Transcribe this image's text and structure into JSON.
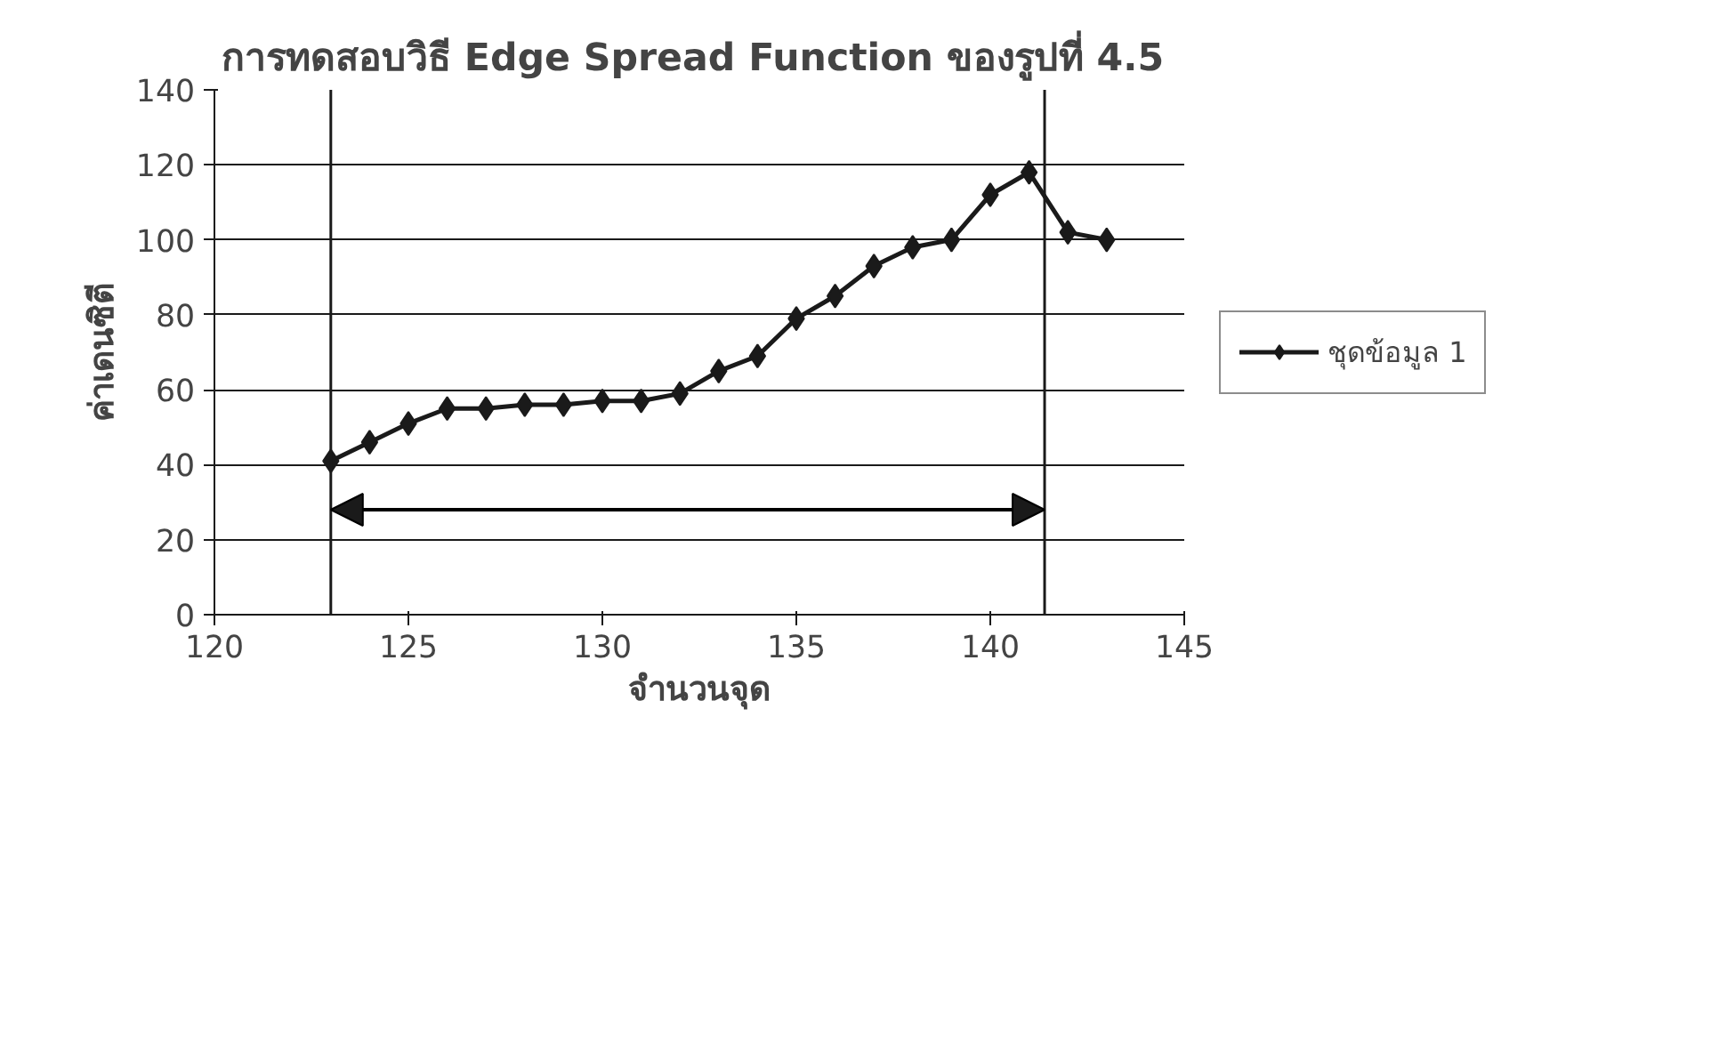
{
  "chart_data": {
    "type": "line",
    "title": "การทดสอบวิธี  Edge Spread Function ของรูปที่ 4.5",
    "xlabel": "จำนวนจุด",
    "ylabel": "ค่าเดนซิตี",
    "x": [
      123,
      124,
      125,
      126,
      127,
      128,
      129,
      130,
      131,
      132,
      133,
      134,
      135,
      136,
      137,
      138,
      139,
      140,
      141,
      142,
      143
    ],
    "series": [
      {
        "name": "ชุดข้อมูล 1",
        "color": "#1a1a1a",
        "values": [
          41,
          46,
          51,
          55,
          55,
          56,
          56,
          57,
          57,
          59,
          65,
          69,
          79,
          85,
          93,
          98,
          100,
          112,
          118,
          102,
          100
        ]
      }
    ],
    "xlim": [
      120,
      145
    ],
    "xticks": [
      120,
      125,
      130,
      135,
      140,
      145
    ],
    "ylim": [
      0,
      140
    ],
    "yticks": [
      0,
      20,
      40,
      60,
      80,
      100,
      120,
      140
    ],
    "ref_lines": [
      {
        "axis": "x",
        "value": 123,
        "color": "#1a1a1a"
      },
      {
        "axis": "x",
        "value": 141.4,
        "color": "#1a1a1a"
      }
    ],
    "grid": "y",
    "legend": "right",
    "marker": "diamond",
    "line_style": "solid"
  }
}
